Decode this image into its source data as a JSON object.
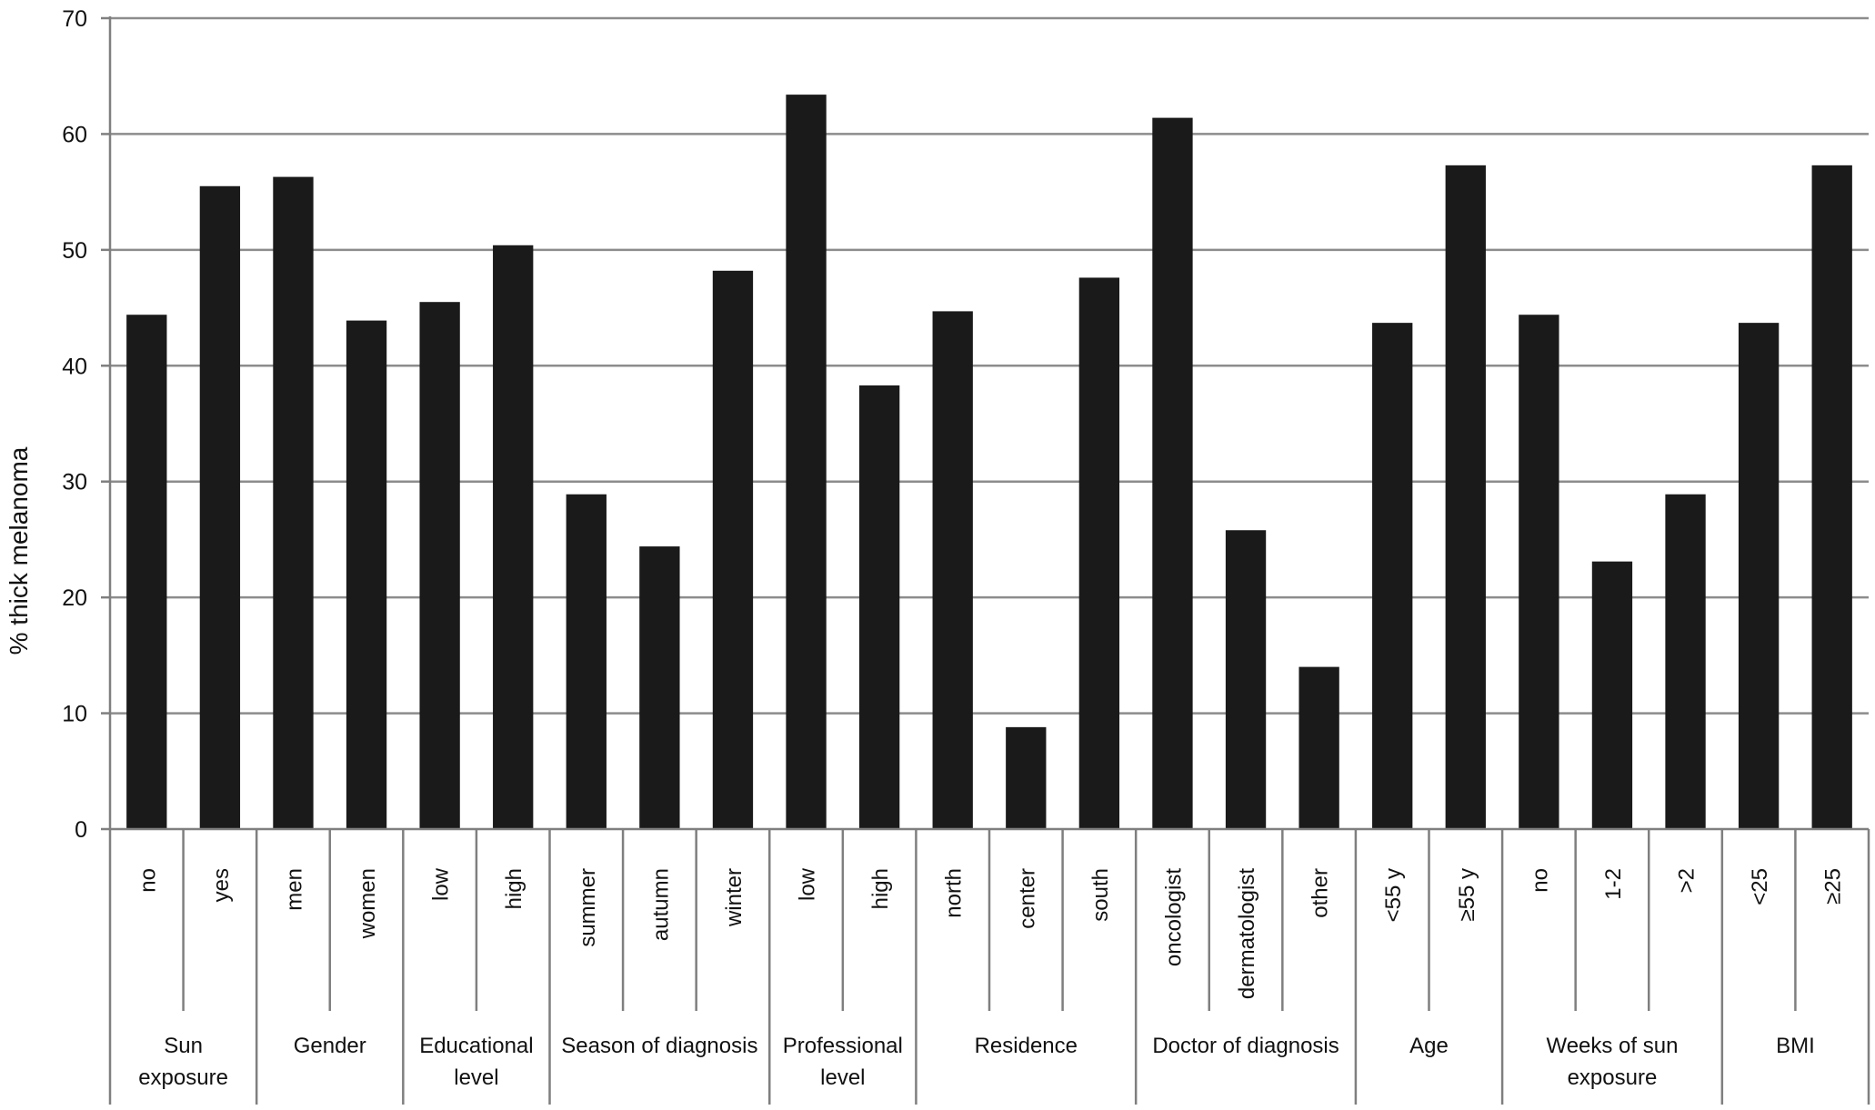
{
  "chart_data": {
    "type": "bar",
    "title": "",
    "ylabel": "% thick melanoma",
    "xlabel": "",
    "ylim": [
      0,
      70
    ],
    "yticks": [
      0,
      10,
      20,
      30,
      40,
      50,
      60,
      70
    ],
    "grid": true,
    "legend": "none",
    "bar_color": "#1a1a1a",
    "grid_color": "#8c8c8c",
    "groups": [
      {
        "label": [
          "Sun",
          "exposure"
        ],
        "categories": [
          "no",
          "yes"
        ],
        "values": [
          44.4,
          55.5
        ]
      },
      {
        "label": [
          "Gender"
        ],
        "categories": [
          "men",
          "women"
        ],
        "values": [
          56.3,
          43.9
        ]
      },
      {
        "label": [
          "Educational",
          "level"
        ],
        "categories": [
          "low",
          "high"
        ],
        "values": [
          45.5,
          50.4
        ]
      },
      {
        "label": [
          "Season of diagnosis"
        ],
        "categories": [
          "summer",
          "autumn",
          "winter"
        ],
        "values": [
          28.9,
          24.4,
          48.2
        ]
      },
      {
        "label": [
          "Professional",
          "level"
        ],
        "categories": [
          "low",
          "high"
        ],
        "values": [
          63.4,
          38.3
        ]
      },
      {
        "label": [
          "Residence"
        ],
        "categories": [
          "north",
          "center",
          "south"
        ],
        "values": [
          44.7,
          8.8,
          47.6
        ]
      },
      {
        "label": [
          "Doctor of diagnosis"
        ],
        "categories": [
          "oncologist",
          "dermatologist",
          "other"
        ],
        "values": [
          61.4,
          25.8,
          14.0
        ]
      },
      {
        "label": [
          "Age"
        ],
        "categories": [
          "<55 y",
          "≥55 y"
        ],
        "values": [
          43.7,
          57.3
        ]
      },
      {
        "label": [
          "Weeks of sun",
          "exposure"
        ],
        "categories": [
          "no",
          "1-2",
          ">2"
        ],
        "values": [
          44.4,
          23.1,
          28.9
        ]
      },
      {
        "label": [
          "BMI"
        ],
        "categories": [
          "<25",
          "≥25"
        ],
        "values": [
          43.7,
          57.3
        ]
      }
    ]
  }
}
